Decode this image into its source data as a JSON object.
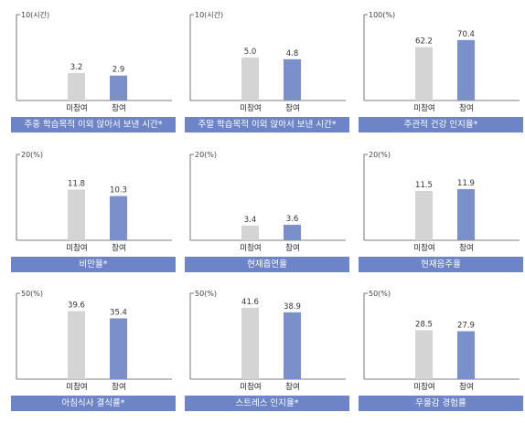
{
  "colors": {
    "bar_nonparticipant": "#d4d4d4",
    "bar_participant": "#7b8fca",
    "title_bar": "#6d84c7"
  },
  "chart_data": [
    {
      "type": "bar",
      "title": "주중 학습목적 이외 앉아서 보낸 시간*",
      "ymax_label": "10(시간)",
      "ylim": [
        0,
        10
      ],
      "categories": [
        "미참여",
        "참여"
      ],
      "values": [
        3.2,
        2.9
      ],
      "value_labels": [
        "3.2",
        "2.9"
      ]
    },
    {
      "type": "bar",
      "title": "주말 학습목적 이외 앉아서 보낸 시간*",
      "ymax_label": "10(시간)",
      "ylim": [
        0,
        10
      ],
      "categories": [
        "미참여",
        "참여"
      ],
      "values": [
        5.0,
        4.8
      ],
      "value_labels": [
        "5.0",
        "4.8"
      ]
    },
    {
      "type": "bar",
      "title": "주관적 건강 인지율*",
      "ymax_label": "100(%)",
      "ylim": [
        0,
        100
      ],
      "categories": [
        "미참여",
        "참여"
      ],
      "values": [
        62.2,
        70.4
      ],
      "value_labels": [
        "62.2",
        "70.4"
      ]
    },
    {
      "type": "bar",
      "title": "비만율*",
      "ymax_label": "20(%)",
      "ylim": [
        0,
        20
      ],
      "categories": [
        "미참여",
        "참여"
      ],
      "values": [
        11.8,
        10.3
      ],
      "value_labels": [
        "11.8",
        "10.3"
      ]
    },
    {
      "type": "bar",
      "title": "현재흡연율",
      "ymax_label": "20(%)",
      "ylim": [
        0,
        20
      ],
      "categories": [
        "미참여",
        "참여"
      ],
      "values": [
        3.4,
        3.6
      ],
      "value_labels": [
        "3.4",
        "3.6"
      ]
    },
    {
      "type": "bar",
      "title": "현재음주율",
      "ymax_label": "20(%)",
      "ylim": [
        0,
        20
      ],
      "categories": [
        "미참여",
        "참여"
      ],
      "values": [
        11.5,
        11.9
      ],
      "value_labels": [
        "11.5",
        "11.9"
      ]
    },
    {
      "type": "bar",
      "title": "아침식사 결식률*",
      "ymax_label": "50(%)",
      "ylim": [
        0,
        50
      ],
      "categories": [
        "미참여",
        "참여"
      ],
      "values": [
        39.6,
        35.4
      ],
      "value_labels": [
        "39.6",
        "35.4"
      ]
    },
    {
      "type": "bar",
      "title": "스트레스 인지율*",
      "ymax_label": "50(%)",
      "ylim": [
        0,
        50
      ],
      "categories": [
        "미참여",
        "참여"
      ],
      "values": [
        41.6,
        38.9
      ],
      "value_labels": [
        "41.6",
        "38.9"
      ]
    },
    {
      "type": "bar",
      "title": "우울감 경험률",
      "ymax_label": "50(%)",
      "ylim": [
        0,
        50
      ],
      "categories": [
        "미참여",
        "참여"
      ],
      "values": [
        28.5,
        27.9
      ],
      "value_labels": [
        "28.5",
        "27.9"
      ]
    }
  ]
}
